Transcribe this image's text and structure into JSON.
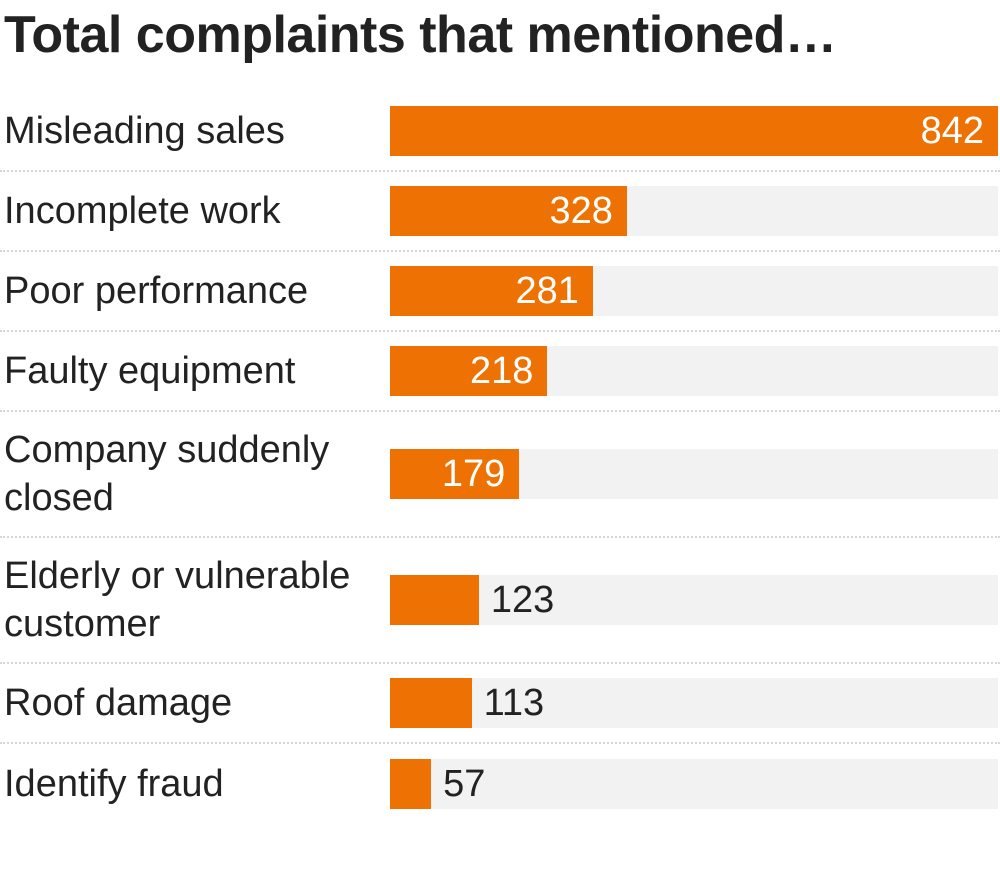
{
  "chart_data": {
    "type": "bar",
    "orientation": "horizontal",
    "title": "Total complaints that mentioned…",
    "categories": [
      "Misleading sales",
      "Incomplete work",
      "Poor performance",
      "Faulty equipment",
      "Company suddenly closed",
      "Elderly or vulnerable customer",
      "Roof damage",
      "Identify fraud"
    ],
    "values": [
      842,
      328,
      281,
      218,
      179,
      123,
      113,
      57
    ],
    "color": "#ee7203"
  }
}
